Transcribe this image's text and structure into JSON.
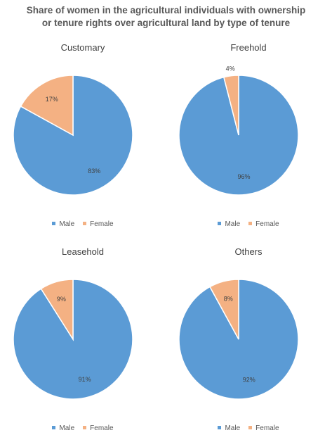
{
  "title_line1": "Share of women in the agricultural individuals with ownership",
  "title_line2": "or tenure rights over agricultural land by type of tenure",
  "colors": {
    "male": "#5B9BD5",
    "female": "#F4B183",
    "edge": "#ffffff",
    "text": "#404040"
  },
  "chart_data": [
    {
      "type": "pie",
      "title": "Customary",
      "categories": [
        "Male",
        "Female"
      ],
      "values": [
        83,
        17
      ],
      "data_labels": [
        "83%",
        "17%"
      ],
      "legend_position": "bottom"
    },
    {
      "type": "pie",
      "title": "Freehold",
      "categories": [
        "Male",
        "Female"
      ],
      "values": [
        96,
        4
      ],
      "data_labels": [
        "96%",
        "4%"
      ],
      "legend_position": "bottom"
    },
    {
      "type": "pie",
      "title": "Leasehold",
      "categories": [
        "Male",
        "Female"
      ],
      "values": [
        91,
        9
      ],
      "data_labels": [
        "91%",
        "9%"
      ],
      "legend_position": "bottom"
    },
    {
      "type": "pie",
      "title": "Others",
      "categories": [
        "Male",
        "Female"
      ],
      "values": [
        92,
        8
      ],
      "data_labels": [
        "92%",
        "8%"
      ],
      "legend_position": "bottom"
    }
  ]
}
